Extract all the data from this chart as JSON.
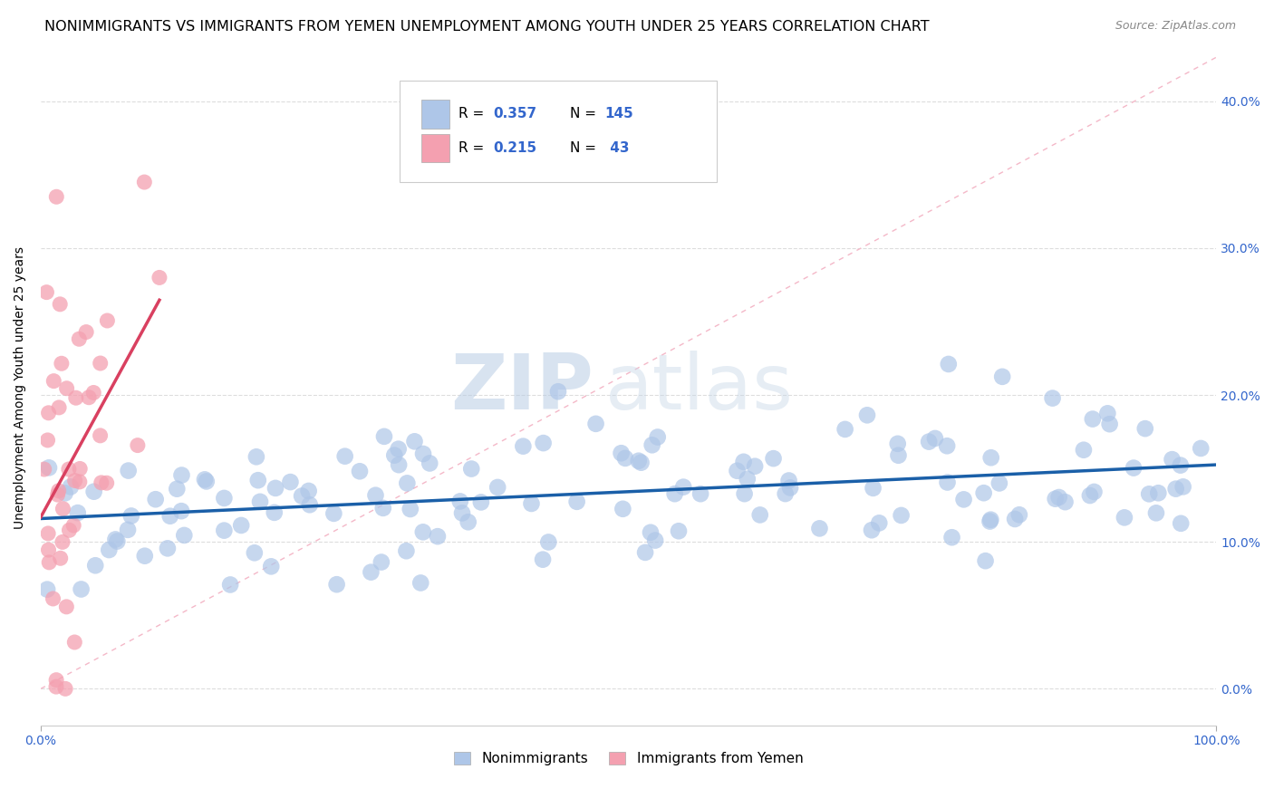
{
  "title": "NONIMMIGRANTS VS IMMIGRANTS FROM YEMEN UNEMPLOYMENT AMONG YOUTH UNDER 25 YEARS CORRELATION CHART",
  "source": "Source: ZipAtlas.com",
  "ylabel_label": "Unemployment Among Youth under 25 years",
  "legend_labels": [
    "Nonimmigrants",
    "Immigrants from Yemen"
  ],
  "R_nonimm": 0.357,
  "N_nonimm": 145,
  "R_imm": 0.215,
  "N_imm": 43,
  "nonimm_color": "#aec6e8",
  "imm_color": "#f4a0b0",
  "nonimm_line_color": "#1a5fa8",
  "imm_line_color": "#d94060",
  "diagonal_color": "#f4b8c8",
  "background_color": "#ffffff",
  "grid_color": "#dddddd",
  "watermark1": "ZIP",
  "watermark2": "atlas",
  "title_fontsize": 11.5,
  "axis_label_fontsize": 10,
  "tick_fontsize": 10,
  "source_fontsize": 9,
  "seed": 42,
  "xlim": [
    0,
    1
  ],
  "ylim": [
    -0.025,
    0.435
  ]
}
